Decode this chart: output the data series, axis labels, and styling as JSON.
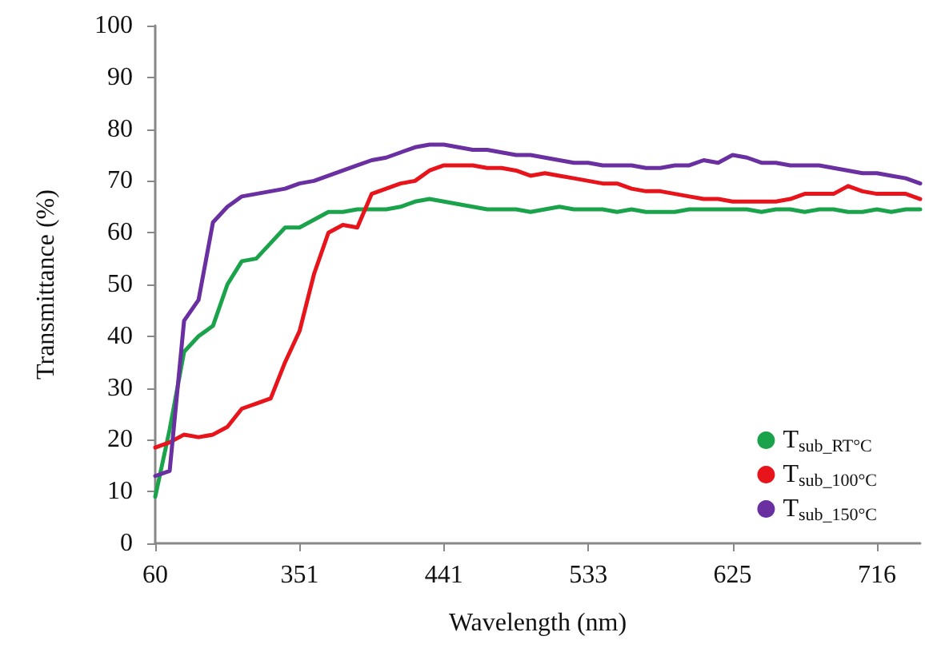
{
  "chart_data": {
    "type": "line",
    "xlabel": "Wavelength (nm)",
    "ylabel": "Transmittance (%)",
    "categories": [
      "60",
      null,
      null,
      null,
      null,
      null,
      null,
      null,
      null,
      null,
      "351",
      null,
      null,
      null,
      null,
      null,
      null,
      null,
      null,
      null,
      "441",
      null,
      null,
      null,
      null,
      null,
      null,
      null,
      null,
      null,
      "533",
      null,
      null,
      null,
      null,
      null,
      null,
      null,
      null,
      null,
      "625",
      null,
      null,
      null,
      null,
      null,
      null,
      null,
      null,
      null,
      "716",
      null,
      null,
      null
    ],
    "ylim": [
      0,
      100
    ],
    "yticks": [
      0,
      10,
      20,
      30,
      40,
      50,
      60,
      70,
      80,
      90,
      100
    ],
    "grid": false,
    "legend": "bottom right",
    "marker": "none",
    "line_style": "solid",
    "series": [
      {
        "name": "T$_{sub_RT°C}$",
        "color": "#1aa34a",
        "values": [
          9,
          22,
          37,
          40,
          42,
          50,
          54.5,
          55,
          58,
          61,
          61,
          62.5,
          64,
          64,
          64.5,
          64.5,
          64.5,
          65,
          66,
          66.5,
          66,
          65.5,
          65,
          64.5,
          64.5,
          64.5,
          64,
          64.5,
          65,
          64.5,
          64.5,
          64.5,
          64,
          64.5,
          64,
          64,
          64,
          64.5,
          64.5,
          64.5,
          64.5,
          64.5,
          64,
          64.5,
          64.5,
          64,
          64.5,
          64.5,
          64,
          64,
          64.5,
          64,
          64.5,
          64.5
        ]
      },
      {
        "name": "T$_{sub_100°C}$",
        "color": "#e8141b",
        "values": [
          18.5,
          19.5,
          21,
          20.5,
          21,
          22.5,
          26,
          27,
          28,
          35,
          41,
          52,
          60,
          61.5,
          61,
          67.5,
          68.5,
          69.5,
          70,
          72,
          73,
          73,
          73,
          72.5,
          72.5,
          72,
          71,
          71.5,
          71,
          70.5,
          70,
          69.5,
          69.5,
          68.5,
          68,
          68,
          67.5,
          67,
          66.5,
          66.5,
          66,
          66,
          66,
          66,
          66.5,
          67.5,
          67.5,
          67.5,
          69,
          68,
          67.5,
          67.5,
          67.5,
          66.5
        ]
      },
      {
        "name": "T$_{sub_150°C}$",
        "color": "#6a2fa0",
        "values": [
          13,
          14,
          43,
          47,
          62,
          65,
          67,
          67.5,
          68,
          68.5,
          69.5,
          70,
          71,
          72,
          73,
          74,
          74.5,
          75.5,
          76.5,
          77,
          77,
          76.5,
          76,
          76,
          75.5,
          75,
          75,
          74.5,
          74,
          73.5,
          73.5,
          73,
          73,
          73,
          72.5,
          72.5,
          73,
          73,
          74,
          73.5,
          75,
          74.5,
          73.5,
          73.5,
          73,
          73,
          73,
          72.5,
          72,
          71.5,
          71.5,
          71,
          70.5,
          69.5
        ]
      }
    ]
  }
}
